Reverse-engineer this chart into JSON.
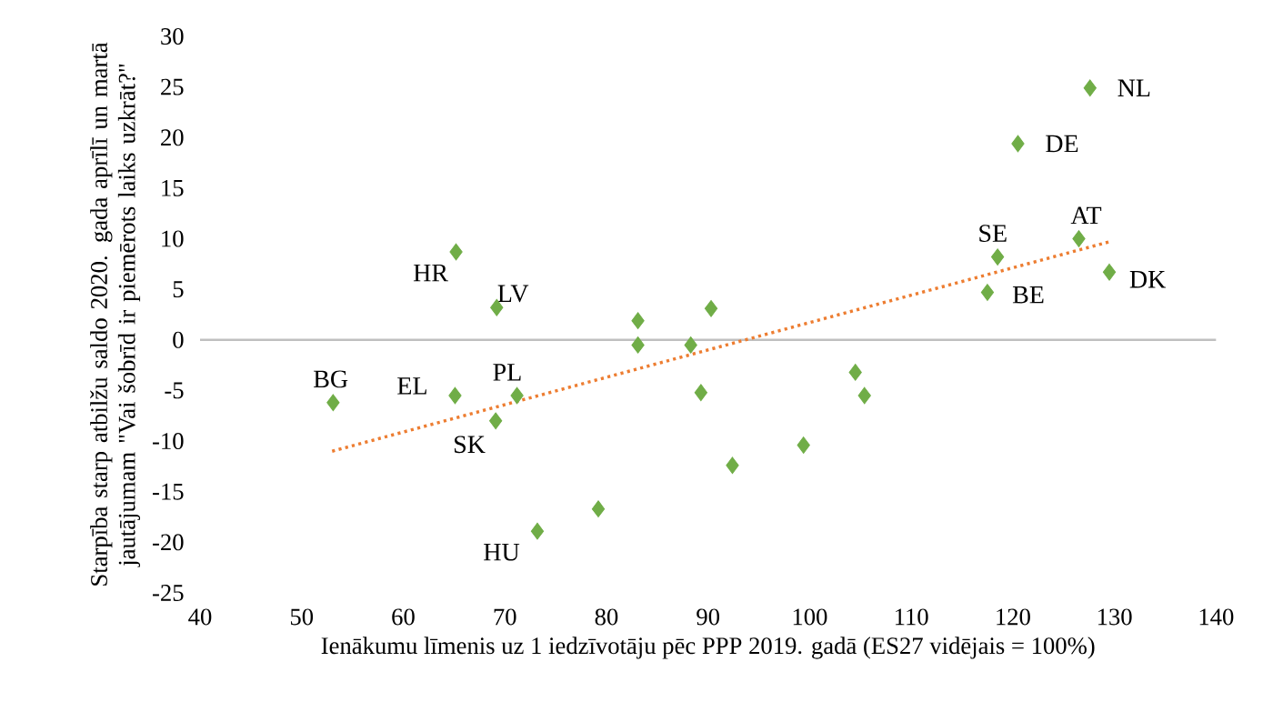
{
  "chart_data": {
    "type": "scatter",
    "xlabel": "Ienākumu līmenis uz 1 iedzīvotāju pēc PPP 2019. gadā (ES27 vidējais = 100%)",
    "ylabel": "Starpība starp atbilžu saldo 2020. gada aprīlī un martā jautājumam \"Vai šobrīd ir piemērots laiks uzkrāt?\"",
    "xlim": [
      40,
      140
    ],
    "xticks": [
      40,
      50,
      60,
      70,
      80,
      90,
      100,
      110,
      120,
      130,
      140
    ],
    "ylim": [
      -25,
      30
    ],
    "yticks": [
      -25,
      -20,
      -15,
      -10,
      -5,
      0,
      5,
      10,
      15,
      20,
      25,
      30
    ],
    "marker": "diamond",
    "series": [
      {
        "color": "#70ad47",
        "x": [
          127.6,
          120.5,
          126.5,
          118.5,
          129.5,
          117.5,
          65.2,
          69.2,
          53.1,
          65.1,
          71.2,
          69.1,
          73.2,
          83.1,
          83.1,
          88.3,
          90.3,
          89.3,
          92.4,
          79.2,
          104.5,
          105.4,
          99.4
        ],
        "values": [
          24.9,
          19.4,
          10.0,
          8.2,
          6.7,
          4.7,
          8.7,
          3.2,
          -6.2,
          -5.5,
          -5.5,
          -8.0,
          -18.9,
          1.9,
          -0.5,
          -0.5,
          3.1,
          -5.2,
          -12.4,
          -16.7,
          -3.2,
          -5.5,
          -10.4
        ]
      },
      {
        "type": "line",
        "color": "#ed7d31",
        "line_style": "dotted",
        "marker": "none",
        "x": [
          53,
          129.5
        ],
        "values": [
          -11.0,
          9.7
        ]
      }
    ],
    "annotations": [
      {
        "text": "NL",
        "x": 127.6,
        "y": 24.9
      },
      {
        "text": "DE",
        "x": 120.5,
        "y": 19.4
      },
      {
        "text": "AT",
        "x": 126.5,
        "y": 10.0
      },
      {
        "text": "SE",
        "x": 118.5,
        "y": 8.2
      },
      {
        "text": "DK",
        "x": 129.5,
        "y": 6.7
      },
      {
        "text": "BE",
        "x": 117.5,
        "y": 4.7
      },
      {
        "text": "HR",
        "x": 65.2,
        "y": 8.7
      },
      {
        "text": "LV",
        "x": 69.2,
        "y": 3.2
      },
      {
        "text": "BG",
        "x": 53.1,
        "y": -6.2
      },
      {
        "text": "EL",
        "x": 65.1,
        "y": -5.5
      },
      {
        "text": "PL",
        "x": 71.2,
        "y": -5.5
      },
      {
        "text": "SK",
        "x": 69.1,
        "y": -8.0
      },
      {
        "text": "HU",
        "x": 73.2,
        "y": -18.9
      }
    ]
  }
}
